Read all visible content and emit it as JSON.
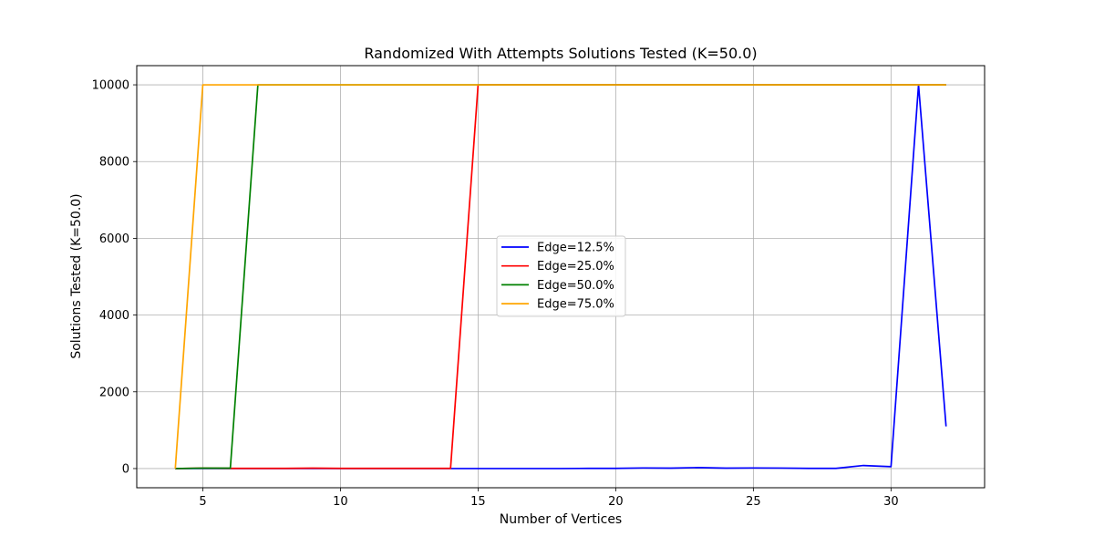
{
  "chart_data": {
    "type": "line",
    "title": "Randomized With Attempts Solutions Tested (K=50.0)",
    "xlabel": "Number of Vertices",
    "ylabel": "Solutions Tested (K=50.0)",
    "xlim": [
      2.6,
      33.4
    ],
    "ylim": [
      -500,
      10500
    ],
    "xticks": [
      5,
      10,
      15,
      20,
      25,
      30
    ],
    "yticks": [
      0,
      2000,
      4000,
      6000,
      8000,
      10000
    ],
    "grid": true,
    "legend_position": "center",
    "series": [
      {
        "name": "Edge=12.5%",
        "color": "#0000ff",
        "x": [
          4,
          5,
          6,
          7,
          8,
          9,
          10,
          11,
          12,
          13,
          14,
          15,
          16,
          17,
          18,
          19,
          20,
          21,
          22,
          23,
          24,
          25,
          26,
          27,
          28,
          29,
          30,
          31,
          32
        ],
        "y": [
          0,
          0,
          0,
          0,
          0,
          0,
          0,
          0,
          0,
          0,
          0,
          0,
          0,
          0,
          0,
          5,
          5,
          15,
          10,
          25,
          10,
          15,
          12,
          5,
          5,
          80,
          50,
          10000,
          1100
        ]
      },
      {
        "name": "Edge=25.0%",
        "color": "#ff0000",
        "x": [
          4,
          5,
          6,
          7,
          8,
          9,
          10,
          11,
          12,
          13,
          14,
          15,
          16,
          17,
          18,
          19,
          20,
          21,
          22,
          23,
          24,
          25,
          26,
          27,
          28,
          29,
          30,
          31,
          32
        ],
        "y": [
          0,
          10,
          5,
          5,
          5,
          10,
          5,
          5,
          5,
          5,
          5,
          10000,
          10000,
          10000,
          10000,
          10000,
          10000,
          10000,
          10000,
          10000,
          10000,
          10000,
          10000,
          10000,
          10000,
          10000,
          10000,
          10000,
          10000
        ]
      },
      {
        "name": "Edge=50.0%",
        "color": "#008000",
        "x": [
          4,
          5,
          6,
          7,
          8,
          9,
          10,
          11,
          12,
          13,
          14,
          15,
          16,
          17,
          18,
          19,
          20,
          21,
          22,
          23,
          24,
          25,
          26,
          27,
          28,
          29,
          30,
          31,
          32
        ],
        "y": [
          0,
          10,
          10,
          10000,
          10000,
          10000,
          10000,
          10000,
          10000,
          10000,
          10000,
          10000,
          10000,
          10000,
          10000,
          10000,
          10000,
          10000,
          10000,
          10000,
          10000,
          10000,
          10000,
          10000,
          10000,
          10000,
          10000,
          10000,
          10000
        ]
      },
      {
        "name": "Edge=75.0%",
        "color": "#ffa500",
        "x": [
          4,
          5,
          6,
          7,
          8,
          9,
          10,
          11,
          12,
          13,
          14,
          15,
          16,
          17,
          18,
          19,
          20,
          21,
          22,
          23,
          24,
          25,
          26,
          27,
          28,
          29,
          30,
          31,
          32
        ],
        "y": [
          0,
          10000,
          10000,
          10000,
          10000,
          10000,
          10000,
          10000,
          10000,
          10000,
          10000,
          10000,
          10000,
          10000,
          10000,
          10000,
          10000,
          10000,
          10000,
          10000,
          10000,
          10000,
          10000,
          10000,
          10000,
          10000,
          10000,
          10000,
          10000
        ]
      }
    ]
  }
}
